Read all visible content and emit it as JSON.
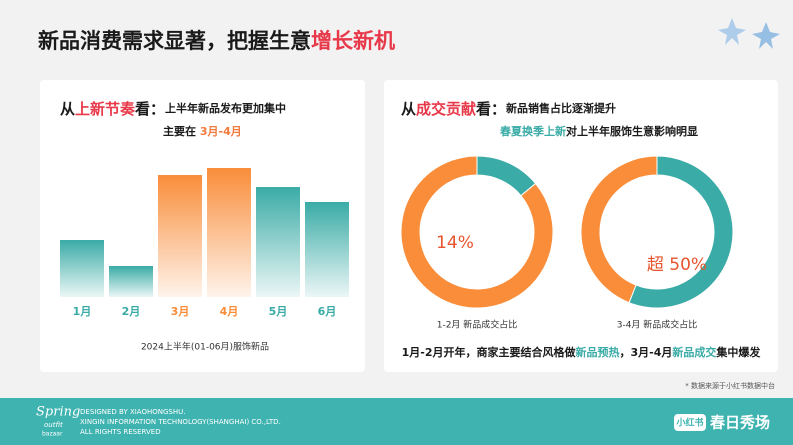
{
  "title": {
    "main": "新品消费需求显著，把握生意",
    "highlight": "增长新机"
  },
  "left_panel": {
    "heading": [
      "从",
      "上新节奏",
      "看："
    ],
    "line1": "上半年新品发布更加集中",
    "line2_prefix": "主要在 ",
    "line2_highlight": "3月-4月"
  },
  "right_panel": {
    "heading": [
      "从",
      "成交贡献",
      "看："
    ],
    "line1": "新品销售占比逐渐提升",
    "line2_highlight": "春夏换季上新",
    "line2_rest": "对上半年服饰生意影响明显",
    "summary": [
      "1月-2月开年，商家主要结合风格做",
      "新品预热",
      "，3月-4月",
      "新品成交",
      "集中爆发"
    ]
  },
  "chart_data": [
    {
      "type": "bar",
      "categories": [
        "1月",
        "2月",
        "3月",
        "4月",
        "5月",
        "6月"
      ],
      "values": [
        57,
        31,
        122,
        129,
        110,
        95
      ],
      "colors": [
        "#3aaba6",
        "#3aaba6",
        "#f98d3a",
        "#f98d3a",
        "#3aaba6",
        "#3aaba6"
      ],
      "ylim": [
        0,
        140
      ],
      "caption": "2024上半年(01-06月)服饰新品"
    },
    {
      "type": "pie",
      "values": [
        14,
        86
      ],
      "colors": [
        "#3aaba6",
        "#f98d3a"
      ],
      "annotation": "14%",
      "caption": "1-2月 新品成交占比"
    },
    {
      "type": "pie",
      "values": [
        56,
        44
      ],
      "colors": [
        "#3aaba6",
        "#f98d3a"
      ],
      "annotation": "超 50%",
      "caption": "3-4月 新品成交占比"
    }
  ],
  "footnote": "* 数据来源于小红书数据中台",
  "footer": {
    "logo": [
      "Spring",
      "outfit",
      "bazaar"
    ],
    "credits": [
      "DESIGNED BY XIAOHONGSHU.",
      "XINGIN INFORMATION TECHNOLOGY(SHANGHAI) CO.,LTD.",
      "ALL RIGHTS RESERVED"
    ],
    "badge": "小红书",
    "brand": "春日秀场"
  }
}
